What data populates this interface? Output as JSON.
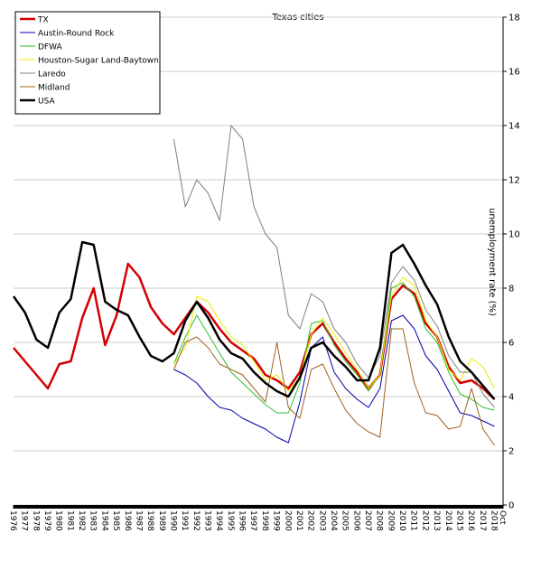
{
  "chart_data": {
    "type": "line",
    "title": "Texas cities",
    "y_label": "unemployment rate (%)",
    "x": [
      1976,
      1977,
      1978,
      1979,
      1980,
      1981,
      1982,
      1983,
      1984,
      1985,
      1986,
      1987,
      1988,
      1989,
      1990,
      1991,
      1992,
      1993,
      1994,
      1995,
      1996,
      1997,
      1998,
      1999,
      2000,
      2001,
      2002,
      2003,
      2004,
      2005,
      2006,
      2007,
      2008,
      2009,
      2010,
      2011,
      2012,
      2013,
      2014,
      2015,
      2016,
      2017,
      2018
    ],
    "xlim": [
      1976,
      2018.75
    ],
    "xticks": [
      1976,
      1977,
      1978,
      1979,
      1980,
      1981,
      1982,
      1983,
      1984,
      1985,
      1986,
      1987,
      1988,
      1989,
      1990,
      1991,
      1992,
      1993,
      1994,
      1995,
      1996,
      1997,
      1998,
      1999,
      2000,
      2001,
      2002,
      2003,
      2004,
      2005,
      2006,
      2007,
      2008,
      2009,
      2010,
      2011,
      2012,
      2013,
      2014,
      2015,
      2016,
      2017,
      2018,
      {
        "value": 2018.75,
        "label": "Oct"
      }
    ],
    "ylim": [
      0,
      18
    ],
    "yticks": [
      0,
      2,
      4,
      6,
      8,
      10,
      12,
      14,
      16,
      18
    ],
    "grid": true,
    "legend": "upper left",
    "series": [
      {
        "name": "TX",
        "color": "#d40000",
        "line_width": 2.5,
        "values": [
          5.8,
          5.3,
          4.8,
          4.3,
          5.2,
          5.3,
          6.9,
          8.0,
          5.9,
          7.0,
          8.9,
          8.4,
          7.3,
          6.7,
          6.3,
          6.9,
          7.5,
          7.1,
          6.5,
          6.0,
          5.7,
          5.4,
          4.8,
          4.6,
          4.3,
          4.9,
          6.3,
          6.7,
          6.0,
          5.4,
          4.9,
          4.3,
          4.8,
          7.6,
          8.1,
          7.8,
          6.7,
          6.2,
          5.1,
          4.5,
          4.6,
          4.3,
          3.9
        ]
      },
      {
        "name": "Austin-Round Rock",
        "color": "#0000a8",
        "line_width": 1,
        "values": [
          null,
          null,
          null,
          null,
          null,
          null,
          null,
          null,
          null,
          null,
          null,
          null,
          null,
          null,
          5.0,
          4.8,
          4.5,
          4.0,
          3.6,
          3.5,
          3.2,
          3.0,
          2.8,
          2.5,
          2.3,
          3.8,
          5.8,
          6.2,
          4.9,
          4.3,
          3.9,
          3.6,
          4.3,
          6.8,
          7.0,
          6.5,
          5.5,
          5.0,
          4.2,
          3.4,
          3.3,
          3.1,
          2.9
        ]
      },
      {
        "name": "DFWA",
        "color": "#2fbf2f",
        "line_width": 1,
        "values": [
          null,
          null,
          null,
          null,
          null,
          null,
          null,
          null,
          null,
          null,
          null,
          null,
          null,
          null,
          5.2,
          6.2,
          7.0,
          6.3,
          5.6,
          4.9,
          4.5,
          4.1,
          3.7,
          3.4,
          3.4,
          4.5,
          6.7,
          6.8,
          5.9,
          5.3,
          4.8,
          4.2,
          4.8,
          8.0,
          8.2,
          7.7,
          6.5,
          6.0,
          4.9,
          4.1,
          3.9,
          3.6,
          3.5
        ]
      },
      {
        "name": "Houston-Sugar Land-Baytown",
        "color": "#eeee00",
        "line_width": 1,
        "values": [
          null,
          null,
          null,
          null,
          null,
          null,
          null,
          null,
          null,
          null,
          null,
          null,
          null,
          null,
          5.2,
          5.8,
          7.7,
          7.5,
          6.8,
          6.2,
          5.9,
          5.3,
          4.6,
          4.8,
          4.2,
          4.7,
          6.3,
          6.9,
          6.3,
          5.6,
          5.0,
          4.3,
          4.8,
          7.7,
          8.4,
          8.1,
          6.8,
          6.2,
          5.0,
          4.6,
          5.4,
          5.1,
          4.3
        ]
      },
      {
        "name": "Laredo",
        "color": "#808080",
        "line_width": 1,
        "values": [
          null,
          null,
          null,
          null,
          null,
          null,
          null,
          null,
          null,
          null,
          null,
          null,
          null,
          null,
          13.5,
          11.0,
          12.0,
          11.5,
          10.5,
          14.0,
          13.5,
          11.0,
          10.0,
          9.5,
          7.0,
          6.5,
          7.8,
          7.5,
          6.5,
          6.0,
          5.2,
          4.7,
          5.5,
          8.2,
          8.8,
          8.3,
          7.2,
          6.6,
          5.5,
          4.9,
          4.9,
          4.1,
          3.6
        ]
      },
      {
        "name": "Midland",
        "color": "#a0621e",
        "line_width": 1,
        "values": [
          null,
          null,
          null,
          null,
          null,
          null,
          null,
          null,
          null,
          null,
          null,
          null,
          null,
          null,
          5.0,
          6.0,
          6.2,
          5.8,
          5.2,
          5.0,
          4.8,
          4.3,
          3.8,
          6.0,
          3.6,
          3.2,
          5.0,
          5.2,
          4.3,
          3.5,
          3.0,
          2.7,
          2.5,
          6.5,
          6.5,
          4.5,
          3.4,
          3.3,
          2.8,
          2.9,
          4.3,
          2.8,
          2.2
        ]
      },
      {
        "name": "USA",
        "color": "#000000",
        "line_width": 2.5,
        "values": [
          7.7,
          7.1,
          6.1,
          5.8,
          7.1,
          7.6,
          9.7,
          9.6,
          7.5,
          7.2,
          7.0,
          6.2,
          5.5,
          5.3,
          5.6,
          6.8,
          7.5,
          6.9,
          6.1,
          5.6,
          5.4,
          4.9,
          4.5,
          4.2,
          4.0,
          4.7,
          5.8,
          6.0,
          5.5,
          5.1,
          4.6,
          4.6,
          5.8,
          9.3,
          9.6,
          8.9,
          8.1,
          7.4,
          6.2,
          5.3,
          4.9,
          4.4,
          3.9
        ]
      }
    ]
  }
}
